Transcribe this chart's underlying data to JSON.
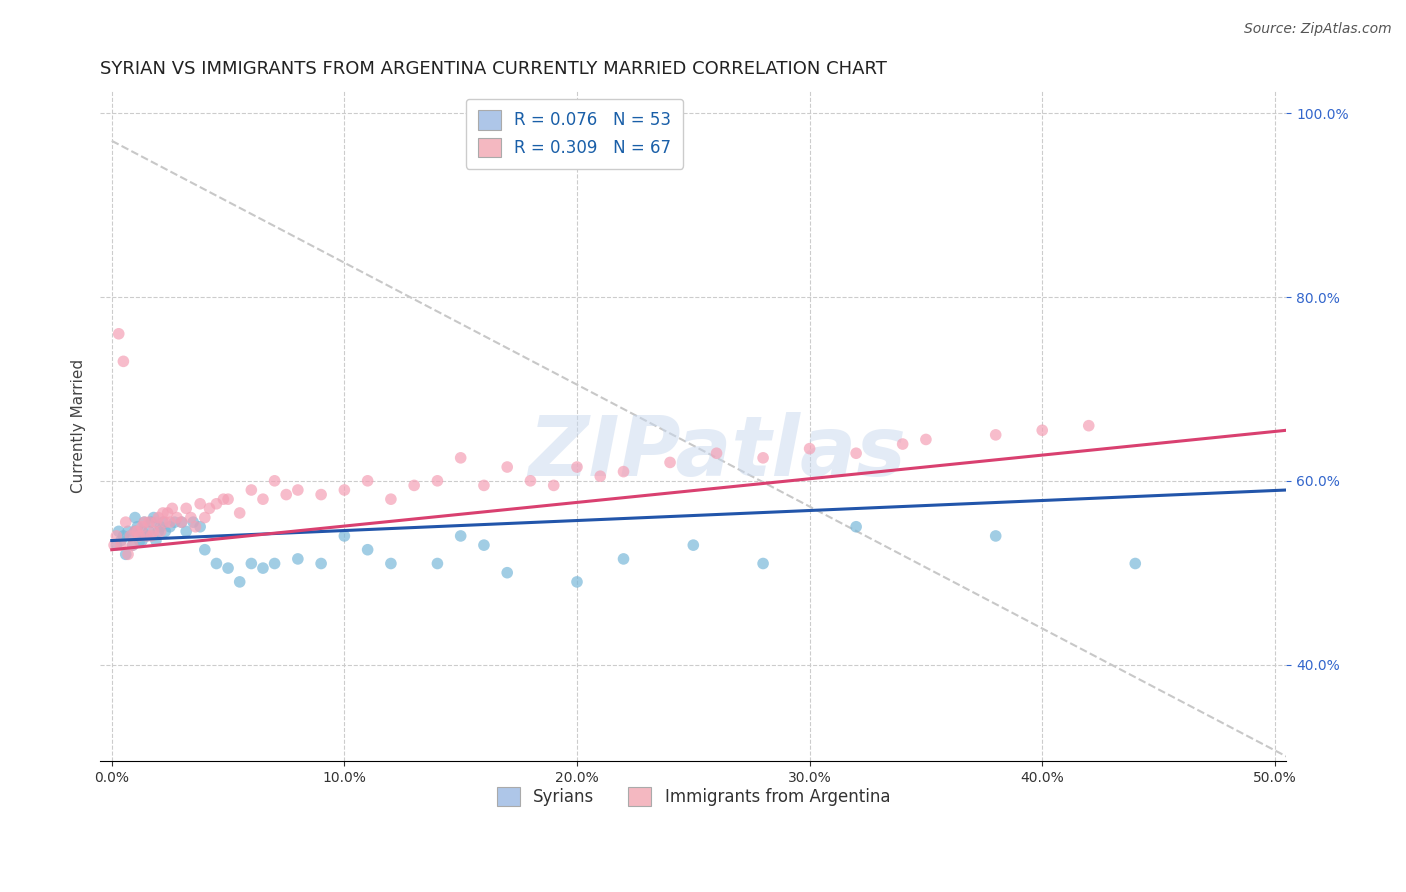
{
  "title": "SYRIAN VS IMMIGRANTS FROM ARGENTINA CURRENTLY MARRIED CORRELATION CHART",
  "source": "Source: ZipAtlas.com",
  "ylabel": "Currently Married",
  "watermark": "ZIPatlas",
  "xlim": [
    -0.005,
    0.505
  ],
  "ylim": [
    0.295,
    1.025
  ],
  "xticks": [
    0.0,
    0.1,
    0.2,
    0.3,
    0.4,
    0.5
  ],
  "yticks": [
    0.4,
    0.6,
    0.8,
    1.0
  ],
  "legend_entries": [
    {
      "label": "R = 0.076   N = 53",
      "color": "#aec6e8"
    },
    {
      "label": "R = 0.309   N = 67",
      "color": "#f4b8c1"
    }
  ],
  "legend_bottom": [
    {
      "label": "Syrians",
      "color": "#aec6e8"
    },
    {
      "label": "Immigrants from Argentina",
      "color": "#f4b8c1"
    }
  ],
  "syrians_x": [
    0.002,
    0.003,
    0.004,
    0.005,
    0.006,
    0.007,
    0.008,
    0.009,
    0.01,
    0.01,
    0.011,
    0.012,
    0.013,
    0.013,
    0.014,
    0.015,
    0.016,
    0.017,
    0.018,
    0.019,
    0.02,
    0.021,
    0.022,
    0.023,
    0.025,
    0.027,
    0.03,
    0.032,
    0.035,
    0.038,
    0.04,
    0.045,
    0.05,
    0.055,
    0.06,
    0.065,
    0.07,
    0.08,
    0.09,
    0.1,
    0.11,
    0.12,
    0.14,
    0.15,
    0.16,
    0.17,
    0.2,
    0.22,
    0.25,
    0.28,
    0.32,
    0.38,
    0.44
  ],
  "syrians_y": [
    0.53,
    0.545,
    0.535,
    0.54,
    0.52,
    0.545,
    0.54,
    0.53,
    0.545,
    0.56,
    0.55,
    0.535,
    0.545,
    0.535,
    0.555,
    0.54,
    0.545,
    0.555,
    0.56,
    0.535,
    0.545,
    0.55,
    0.555,
    0.545,
    0.55,
    0.555,
    0.555,
    0.545,
    0.555,
    0.55,
    0.525,
    0.51,
    0.505,
    0.49,
    0.51,
    0.505,
    0.51,
    0.515,
    0.51,
    0.54,
    0.525,
    0.51,
    0.51,
    0.54,
    0.53,
    0.5,
    0.49,
    0.515,
    0.53,
    0.51,
    0.55,
    0.54,
    0.51
  ],
  "argentina_x": [
    0.001,
    0.002,
    0.003,
    0.004,
    0.005,
    0.006,
    0.007,
    0.008,
    0.009,
    0.01,
    0.011,
    0.012,
    0.013,
    0.014,
    0.015,
    0.016,
    0.017,
    0.018,
    0.019,
    0.02,
    0.021,
    0.022,
    0.023,
    0.024,
    0.025,
    0.026,
    0.028,
    0.03,
    0.032,
    0.034,
    0.036,
    0.038,
    0.04,
    0.042,
    0.045,
    0.048,
    0.05,
    0.055,
    0.06,
    0.065,
    0.07,
    0.075,
    0.08,
    0.09,
    0.1,
    0.11,
    0.12,
    0.13,
    0.14,
    0.15,
    0.16,
    0.17,
    0.18,
    0.19,
    0.2,
    0.21,
    0.22,
    0.24,
    0.26,
    0.28,
    0.3,
    0.32,
    0.34,
    0.35,
    0.38,
    0.4,
    0.42
  ],
  "argentina_y": [
    0.53,
    0.54,
    0.76,
    0.53,
    0.73,
    0.555,
    0.52,
    0.54,
    0.53,
    0.545,
    0.545,
    0.54,
    0.55,
    0.555,
    0.54,
    0.555,
    0.54,
    0.545,
    0.555,
    0.56,
    0.545,
    0.565,
    0.555,
    0.565,
    0.555,
    0.57,
    0.56,
    0.555,
    0.57,
    0.56,
    0.55,
    0.575,
    0.56,
    0.57,
    0.575,
    0.58,
    0.58,
    0.565,
    0.59,
    0.58,
    0.6,
    0.585,
    0.59,
    0.585,
    0.59,
    0.6,
    0.58,
    0.595,
    0.6,
    0.625,
    0.595,
    0.615,
    0.6,
    0.595,
    0.615,
    0.605,
    0.61,
    0.62,
    0.63,
    0.625,
    0.635,
    0.63,
    0.64,
    0.645,
    0.65,
    0.655,
    0.66
  ],
  "blue_trendline_x": [
    0.0,
    0.505
  ],
  "blue_trendline_y": [
    0.535,
    0.59
  ],
  "pink_trendline_x": [
    0.0,
    0.505
  ],
  "pink_trendline_y": [
    0.525,
    0.655
  ],
  "diag_line_x": [
    0.0,
    0.505
  ],
  "diag_line_y": [
    0.97,
    0.3
  ],
  "scatter_blue_color": "#7ab8d9",
  "scatter_pink_color": "#f4a0b5",
  "trendline_blue_color": "#2255aa",
  "trendline_pink_color": "#d94070",
  "trendline_diag_color": "#c8c8c8",
  "grid_color": "#cccccc",
  "background_color": "#ffffff",
  "title_fontsize": 13,
  "axis_label_fontsize": 11,
  "tick_fontsize": 10,
  "legend_fontsize": 12,
  "watermark_fontsize": 60,
  "watermark_color": "#c8d8ee",
  "watermark_alpha": 0.5
}
